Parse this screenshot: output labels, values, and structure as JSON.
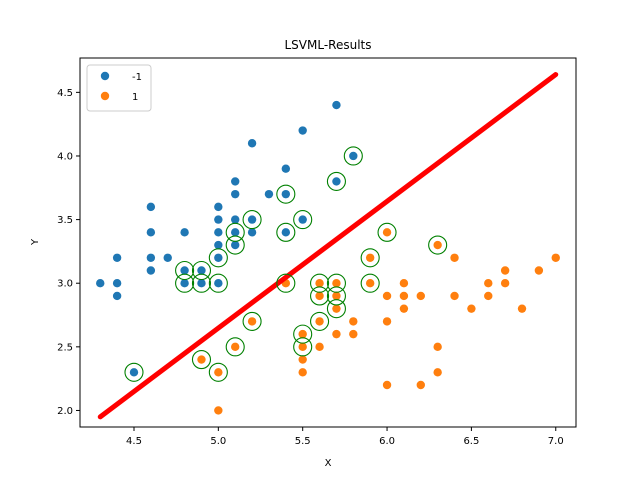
{
  "chart_data": {
    "type": "scatter",
    "title": "LSVML-Results",
    "xlabel": "X",
    "ylabel": "Y",
    "xlim": [
      4.18,
      7.12
    ],
    "ylim": [
      1.87,
      4.77
    ],
    "xticks": [
      4.5,
      5.0,
      5.5,
      6.0,
      6.5,
      7.0
    ],
    "yticks": [
      2.0,
      2.5,
      3.0,
      3.5,
      4.0,
      4.5
    ],
    "xtick_labels": [
      "4.5",
      "5.0",
      "5.5",
      "6.0",
      "6.5",
      "7.0"
    ],
    "ytick_labels": [
      "2.0",
      "2.5",
      "3.0",
      "3.5",
      "4.0",
      "4.5"
    ],
    "grid": false,
    "legend_position": "top-left",
    "series": [
      {
        "name": "-1",
        "color": "#1f77b4",
        "points": [
          [
            4.3,
            3.0
          ],
          [
            4.4,
            3.2
          ],
          [
            4.4,
            3.0
          ],
          [
            4.4,
            2.9
          ],
          [
            4.5,
            2.3
          ],
          [
            4.6,
            3.6
          ],
          [
            4.6,
            3.4
          ],
          [
            4.6,
            3.2
          ],
          [
            4.6,
            3.1
          ],
          [
            4.7,
            3.2
          ],
          [
            4.8,
            3.4
          ],
          [
            4.8,
            3.1
          ],
          [
            4.8,
            3.0
          ],
          [
            4.9,
            3.1
          ],
          [
            4.9,
            3.0
          ],
          [
            5.0,
            3.6
          ],
          [
            5.0,
            3.5
          ],
          [
            5.0,
            3.4
          ],
          [
            5.0,
            3.3
          ],
          [
            5.0,
            3.2
          ],
          [
            5.0,
            3.0
          ],
          [
            5.1,
            3.8
          ],
          [
            5.1,
            3.7
          ],
          [
            5.1,
            3.5
          ],
          [
            5.1,
            3.4
          ],
          [
            5.1,
            3.3
          ],
          [
            5.2,
            4.1
          ],
          [
            5.2,
            3.5
          ],
          [
            5.2,
            3.4
          ],
          [
            5.3,
            3.7
          ],
          [
            5.4,
            3.9
          ],
          [
            5.4,
            3.7
          ],
          [
            5.4,
            3.4
          ],
          [
            5.5,
            4.2
          ],
          [
            5.5,
            3.5
          ],
          [
            5.7,
            4.4
          ],
          [
            5.7,
            3.8
          ],
          [
            5.8,
            4.0
          ]
        ]
      },
      {
        "name": "1",
        "color": "#ff7f0e",
        "points": [
          [
            4.9,
            2.4
          ],
          [
            5.0,
            2.3
          ],
          [
            5.0,
            2.0
          ],
          [
            5.1,
            2.5
          ],
          [
            5.2,
            2.7
          ],
          [
            5.4,
            3.0
          ],
          [
            5.5,
            2.6
          ],
          [
            5.5,
            2.5
          ],
          [
            5.5,
            2.4
          ],
          [
            5.5,
            2.3
          ],
          [
            5.6,
            3.0
          ],
          [
            5.6,
            2.9
          ],
          [
            5.6,
            2.7
          ],
          [
            5.6,
            2.5
          ],
          [
            5.7,
            3.0
          ],
          [
            5.7,
            2.9
          ],
          [
            5.7,
            2.8
          ],
          [
            5.7,
            2.6
          ],
          [
            5.8,
            2.7
          ],
          [
            5.8,
            2.6
          ],
          [
            5.9,
            3.2
          ],
          [
            5.9,
            3.0
          ],
          [
            6.0,
            3.4
          ],
          [
            6.0,
            2.9
          ],
          [
            6.0,
            2.7
          ],
          [
            6.0,
            2.2
          ],
          [
            6.1,
            3.0
          ],
          [
            6.1,
            2.9
          ],
          [
            6.1,
            2.8
          ],
          [
            6.2,
            2.9
          ],
          [
            6.2,
            2.2
          ],
          [
            6.3,
            3.3
          ],
          [
            6.3,
            2.5
          ],
          [
            6.3,
            2.3
          ],
          [
            6.4,
            3.2
          ],
          [
            6.4,
            2.9
          ],
          [
            6.5,
            2.8
          ],
          [
            6.6,
            3.0
          ],
          [
            6.6,
            2.9
          ],
          [
            6.7,
            3.1
          ],
          [
            6.7,
            3.0
          ],
          [
            6.8,
            2.8
          ],
          [
            6.9,
            3.1
          ],
          [
            7.0,
            3.2
          ]
        ]
      }
    ],
    "support_vectors": {
      "color": "#008000",
      "points": [
        [
          4.5,
          2.3
        ],
        [
          4.8,
          3.1
        ],
        [
          4.8,
          3.0
        ],
        [
          4.9,
          3.1
        ],
        [
          4.9,
          3.0
        ],
        [
          4.9,
          2.4
        ],
        [
          5.0,
          3.2
        ],
        [
          5.0,
          3.0
        ],
        [
          5.0,
          2.3
        ],
        [
          5.1,
          3.4
        ],
        [
          5.1,
          3.3
        ],
        [
          5.1,
          2.5
        ],
        [
          5.2,
          3.5
        ],
        [
          5.2,
          2.7
        ],
        [
          5.4,
          3.7
        ],
        [
          5.4,
          3.4
        ],
        [
          5.4,
          3.0
        ],
        [
          5.5,
          3.5
        ],
        [
          5.5,
          2.6
        ],
        [
          5.5,
          2.5
        ],
        [
          5.6,
          3.0
        ],
        [
          5.6,
          2.9
        ],
        [
          5.6,
          2.7
        ],
        [
          5.7,
          3.8
        ],
        [
          5.7,
          3.0
        ],
        [
          5.7,
          2.9
        ],
        [
          5.7,
          2.8
        ],
        [
          5.8,
          4.0
        ],
        [
          5.9,
          3.2
        ],
        [
          5.9,
          3.0
        ],
        [
          6.0,
          3.4
        ],
        [
          6.3,
          3.3
        ]
      ]
    },
    "decision_boundary": {
      "color": "#ff0000",
      "points": [
        [
          4.3,
          1.95
        ],
        [
          7.0,
          4.64
        ]
      ]
    }
  }
}
